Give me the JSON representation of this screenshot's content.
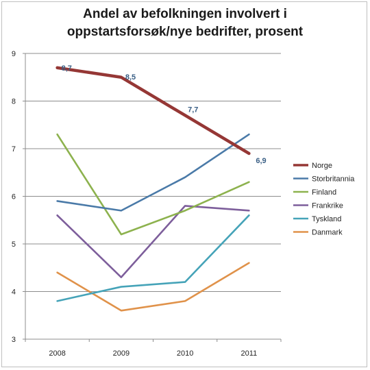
{
  "chart_data": {
    "type": "line",
    "title_line1": "Andel av befolkningen involvert i",
    "title_line2": "oppstartsforsøk/nye bedrifter, prosent",
    "x": [
      "2008",
      "2009",
      "2010",
      "2011"
    ],
    "ylim": [
      3,
      9
    ],
    "yticks": [
      "3",
      "4",
      "5",
      "6",
      "7",
      "8",
      "9"
    ],
    "grid": true,
    "legend_position": "right",
    "series": [
      {
        "name": "Norge",
        "values": [
          8.7,
          8.5,
          7.7,
          6.9
        ],
        "color": "#953735",
        "labels": [
          "8,7",
          "8,5",
          "7,7",
          "6,9"
        ]
      },
      {
        "name": "Storbritannia",
        "values": [
          5.9,
          5.7,
          6.4,
          7.3
        ],
        "color": "#4a7aa8"
      },
      {
        "name": "Finland",
        "values": [
          7.3,
          5.2,
          5.7,
          6.3
        ],
        "color": "#8db24e"
      },
      {
        "name": "Frankrike",
        "values": [
          5.6,
          4.3,
          5.8,
          5.7
        ],
        "color": "#7d5e9b"
      },
      {
        "name": "Tyskland",
        "values": [
          3.8,
          4.1,
          4.2,
          5.6
        ],
        "color": "#45a3b8"
      },
      {
        "name": "Danmark",
        "values": [
          4.4,
          3.6,
          3.8,
          4.6
        ],
        "color": "#e0924a"
      }
    ]
  }
}
